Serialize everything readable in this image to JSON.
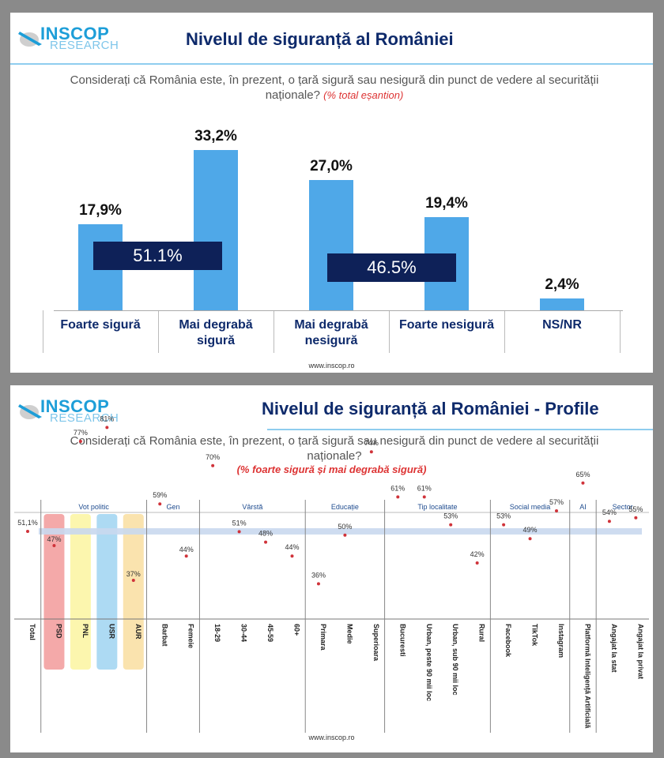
{
  "top": {
    "logo_word1": "INSCOP",
    "logo_word2": "RESEARCH",
    "title": "Nivelul de siguranță al României",
    "question": "Considerați că România este, în prezent, o țară sigură sau nesigură din punct de vedere al securității naționale?",
    "question_note": "(% total eșantion)",
    "sum_safe": "51.1%",
    "sum_unsafe": "46.5%",
    "footer": "www.inscop.ro"
  },
  "bottom": {
    "logo_word1": "INSCOP",
    "logo_word2": "RESEARCH",
    "title": "Nivelul de siguranță al României - Profile",
    "question": "Considerați că România este, în prezent, o țară sigură sau nesigură din punct de vedere al securității naționale?",
    "question_note": "(% foarte sigură și mai degrabă sigură)",
    "footer": "www.inscop.ro"
  },
  "colors": {
    "bar": "#4fa8e8",
    "navy": "#0e2158",
    "title": "#0e2a6b",
    "dot": "#d0333a",
    "band": "#c9d8ee"
  },
  "chart_data": [
    {
      "type": "bar",
      "title": "Nivelul de siguranță al României",
      "categories": [
        "Foarte sigură",
        "Mai degrabă sigură",
        "Mai degrabă nesigură",
        "Foarte nesigură",
        "NS/NR"
      ],
      "values": [
        17.9,
        33.2,
        27.0,
        19.4,
        2.4
      ],
      "value_labels": [
        "17,9%",
        "33,2%",
        "27,0%",
        "19,4%",
        "2,4%"
      ],
      "ylim": [
        0,
        40
      ],
      "unit": "%"
    },
    {
      "type": "scatter",
      "title": "Nivelul de siguranță al României - Profile",
      "groups": [
        {
          "label": "",
          "items": [
            {
              "name": "Total",
              "value": 51.1,
              "label": "51,1%"
            }
          ]
        },
        {
          "label": "Vot politic",
          "items": [
            {
              "name": "PSD",
              "value": 47,
              "label": "47%",
              "highlight": "#f29a9a"
            },
            {
              "name": "PNL",
              "value": 77,
              "label": "77%",
              "highlight": "#fbf4a0"
            },
            {
              "name": "USR",
              "value": 81,
              "label": "81%",
              "highlight": "#9fd3f1"
            },
            {
              "name": "AUR",
              "value": 37,
              "label": "37%",
              "highlight": "#f9dea0"
            }
          ]
        },
        {
          "label": "Gen",
          "items": [
            {
              "name": "Barbat",
              "value": 59,
              "label": "59%"
            },
            {
              "name": "Femeie",
              "value": 44,
              "label": "44%"
            }
          ]
        },
        {
          "label": "Vârstă",
          "items": [
            {
              "name": "18-29",
              "value": 70,
              "label": "70%"
            },
            {
              "name": "30-44",
              "value": 51,
              "label": "51%"
            },
            {
              "name": "45-59",
              "value": 48,
              "label": "48%"
            },
            {
              "name": "60+",
              "value": 44,
              "label": "44%"
            }
          ]
        },
        {
          "label": "Educație",
          "items": [
            {
              "name": "Primara",
              "value": 36,
              "label": "36%"
            },
            {
              "name": "Medie",
              "value": 50,
              "label": "50%"
            },
            {
              "name": "Superioara",
              "value": 74,
              "label": "74%"
            }
          ]
        },
        {
          "label": "Tip localitate",
          "items": [
            {
              "name": "Bucuresti",
              "value": 61,
              "label": "61%"
            },
            {
              "name": "Urban, peste 90 mii loc",
              "value": 61,
              "label": "61%"
            },
            {
              "name": "Urban, sub 90 mii loc",
              "value": 53,
              "label": "53%"
            },
            {
              "name": "Rural",
              "value": 42,
              "label": "42%"
            }
          ]
        },
        {
          "label": "Social media",
          "items": [
            {
              "name": "Facebook",
              "value": 53,
              "label": "53%"
            },
            {
              "name": "TikTok",
              "value": 49,
              "label": "49%"
            },
            {
              "name": "Instagram",
              "value": 57,
              "label": "57%"
            }
          ]
        },
        {
          "label": "AI",
          "items": [
            {
              "name": "Platformă Inteligență Artificială",
              "value": 65,
              "label": "65%"
            }
          ]
        },
        {
          "label": "Sector",
          "items": [
            {
              "name": "Angajat la stat",
              "value": 54,
              "label": "54%"
            },
            {
              "name": "Angajat la privat",
              "value": 55,
              "label": "55%"
            }
          ]
        }
      ],
      "reference_value": 51.1,
      "ylim": [
        20,
        100
      ],
      "unit": "%"
    }
  ]
}
